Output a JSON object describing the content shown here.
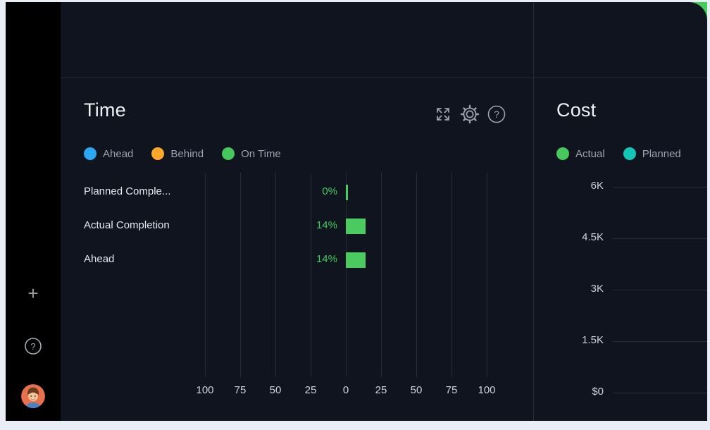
{
  "colors": {
    "page_frame": "#e9edf5",
    "sidebar_bg": "#000000",
    "panel_bg": "#10141f",
    "divider": "#272d3b",
    "gridline": "#262c39",
    "title_text": "#eef1f5",
    "legend_text": "#9aa2b1",
    "axis_text": "#cdd2db",
    "category_text": "#e6e9ee",
    "corner_accent": "#43cc5c",
    "green": "#45c95c",
    "blue": "#2aa7f5",
    "orange": "#ffa72b",
    "teal": "#14c6b6"
  },
  "sidebar": {
    "plus_label": "+",
    "help_glyph": "?"
  },
  "time_panel": {
    "title": "Time",
    "toolbar_icons": [
      "expand-icon",
      "settings-icon",
      "help-icon"
    ],
    "help_glyph": "?",
    "legend": [
      {
        "label": "Ahead",
        "color": "#2aa7f5"
      },
      {
        "label": "Behind",
        "color": "#ffa72b"
      },
      {
        "label": "On Time",
        "color": "#45c95c"
      }
    ]
  },
  "cost_panel": {
    "title": "Cost",
    "legend": [
      {
        "label": "Actual",
        "color": "#45c95c"
      },
      {
        "label": "Planned",
        "color": "#14c6b6"
      }
    ]
  },
  "chart_data": [
    {
      "type": "bar",
      "orientation": "horizontal",
      "title": "Time",
      "categories": [
        "Planned Comple...",
        "Actual Completion",
        "Ahead"
      ],
      "values": [
        0,
        14,
        14
      ],
      "value_labels": [
        "0%",
        "14%",
        "14%"
      ],
      "value_color": "#45c95c",
      "bar_color": "#4bca60",
      "x_ticks": [
        "100",
        "75",
        "50",
        "25",
        "0",
        "25",
        "50",
        "75",
        "100"
      ],
      "xlim": [
        -125,
        125
      ],
      "grid": "vertical",
      "legend": [
        "Ahead",
        "Behind",
        "On Time"
      ],
      "legend_position": "top"
    },
    {
      "type": "line",
      "title": "Cost",
      "y_ticks": [
        "6K",
        "4.5K",
        "3K",
        "1.5K",
        "$0"
      ],
      "ylim": [
        0,
        6000
      ],
      "grid": "horizontal",
      "legend": [
        "Actual",
        "Planned"
      ],
      "legend_position": "top",
      "series": [
        {
          "name": "Actual",
          "color": "#45c95c"
        },
        {
          "name": "Planned",
          "color": "#14c6b6"
        }
      ]
    }
  ]
}
